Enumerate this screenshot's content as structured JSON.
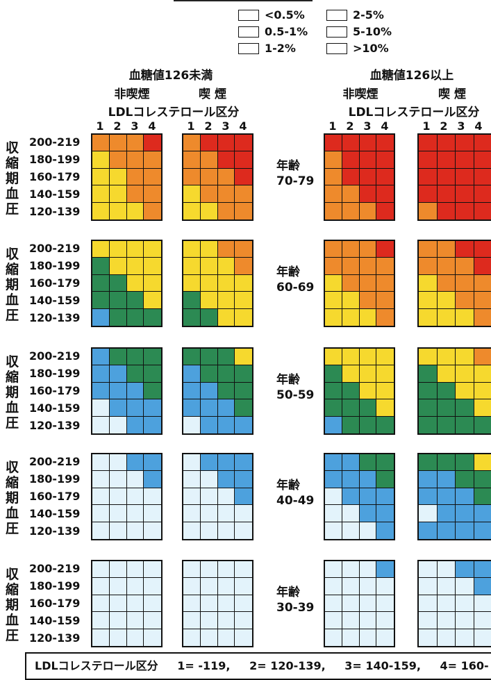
{
  "chart_data": {
    "type": "heatmap",
    "legend": [
      {
        "label": "<0.5%",
        "color": "#e3f3fb"
      },
      {
        "label": "0.5-1%",
        "color": "#4da1dd"
      },
      {
        "label": "1-2%",
        "color": "#2c8a53"
      },
      {
        "label": "2-5%",
        "color": "#f6d92e"
      },
      {
        "label": "5-10%",
        "color": "#ee8a2c"
      },
      {
        "label": ">10%",
        "color": "#dd2a1e"
      }
    ],
    "group_headers": [
      {
        "title": "血糖値126未満",
        "non_smoker": "非喫煙",
        "smoker": "喫 煙",
        "ldl_label": "LDLコレステロール区分"
      },
      {
        "title": "血糖値126以上",
        "non_smoker": "非喫煙",
        "smoker": "喫 煙",
        "ldl_label": "LDLコレステロール区分"
      }
    ],
    "ldl_columns": [
      "1",
      "2",
      "3",
      "4"
    ],
    "sbp_rows": [
      "200-219",
      "180-199",
      "160-179",
      "140-159",
      "120-139"
    ],
    "bp_axis_label": "収縮期血圧",
    "age_prefix": "年齢",
    "panels": [
      {
        "age": "70-79",
        "matrices": [
          [
            [
              4,
              4,
              4,
              5
            ],
            [
              3,
              4,
              4,
              4
            ],
            [
              3,
              3,
              4,
              4
            ],
            [
              3,
              3,
              4,
              4
            ],
            [
              3,
              3,
              3,
              4
            ]
          ],
          [
            [
              4,
              5,
              5,
              5
            ],
            [
              4,
              4,
              5,
              5
            ],
            [
              4,
              4,
              4,
              5
            ],
            [
              3,
              4,
              4,
              4
            ],
            [
              3,
              3,
              4,
              4
            ]
          ],
          [
            [
              5,
              5,
              5,
              5
            ],
            [
              4,
              5,
              5,
              5
            ],
            [
              4,
              5,
              5,
              5
            ],
            [
              4,
              4,
              5,
              5
            ],
            [
              4,
              4,
              4,
              5
            ]
          ],
          [
            [
              5,
              5,
              5,
              5
            ],
            [
              5,
              5,
              5,
              5
            ],
            [
              5,
              5,
              5,
              5
            ],
            [
              5,
              5,
              5,
              5
            ],
            [
              4,
              5,
              5,
              5
            ]
          ]
        ]
      },
      {
        "age": "60-69",
        "matrices": [
          [
            [
              3,
              3,
              3,
              3
            ],
            [
              2,
              3,
              3,
              3
            ],
            [
              2,
              2,
              3,
              3
            ],
            [
              2,
              2,
              2,
              3
            ],
            [
              1,
              2,
              2,
              2
            ]
          ],
          [
            [
              3,
              3,
              4,
              4
            ],
            [
              3,
              3,
              3,
              4
            ],
            [
              3,
              3,
              3,
              3
            ],
            [
              2,
              3,
              3,
              3
            ],
            [
              2,
              2,
              3,
              3
            ]
          ],
          [
            [
              4,
              4,
              4,
              5
            ],
            [
              4,
              4,
              4,
              4
            ],
            [
              3,
              4,
              4,
              4
            ],
            [
              3,
              3,
              4,
              4
            ],
            [
              3,
              3,
              3,
              4
            ]
          ],
          [
            [
              4,
              4,
              5,
              5
            ],
            [
              4,
              4,
              4,
              5
            ],
            [
              3,
              4,
              4,
              4
            ],
            [
              3,
              3,
              4,
              4
            ],
            [
              3,
              3,
              3,
              4
            ]
          ]
        ]
      },
      {
        "age": "50-59",
        "matrices": [
          [
            [
              1,
              2,
              2,
              2
            ],
            [
              1,
              1,
              2,
              2
            ],
            [
              1,
              1,
              1,
              2
            ],
            [
              0,
              1,
              1,
              1
            ],
            [
              0,
              0,
              1,
              1
            ]
          ],
          [
            [
              2,
              2,
              2,
              3
            ],
            [
              1,
              2,
              2,
              2
            ],
            [
              1,
              1,
              2,
              2
            ],
            [
              1,
              1,
              1,
              2
            ],
            [
              0,
              1,
              1,
              1
            ]
          ],
          [
            [
              3,
              3,
              3,
              3
            ],
            [
              2,
              3,
              3,
              3
            ],
            [
              2,
              2,
              3,
              3
            ],
            [
              2,
              2,
              2,
              3
            ],
            [
              1,
              2,
              2,
              2
            ]
          ],
          [
            [
              3,
              3,
              3,
              4
            ],
            [
              2,
              3,
              3,
              3
            ],
            [
              2,
              2,
              3,
              3
            ],
            [
              2,
              2,
              2,
              3
            ],
            [
              2,
              2,
              2,
              2
            ]
          ]
        ]
      },
      {
        "age": "40-49",
        "matrices": [
          [
            [
              0,
              0,
              1,
              1
            ],
            [
              0,
              0,
              0,
              1
            ],
            [
              0,
              0,
              0,
              0
            ],
            [
              0,
              0,
              0,
              0
            ],
            [
              0,
              0,
              0,
              0
            ]
          ],
          [
            [
              0,
              1,
              1,
              1
            ],
            [
              0,
              0,
              1,
              1
            ],
            [
              0,
              0,
              0,
              1
            ],
            [
              0,
              0,
              0,
              0
            ],
            [
              0,
              0,
              0,
              0
            ]
          ],
          [
            [
              1,
              1,
              2,
              2
            ],
            [
              1,
              1,
              1,
              2
            ],
            [
              0,
              1,
              1,
              1
            ],
            [
              0,
              0,
              1,
              1
            ],
            [
              0,
              0,
              0,
              1
            ]
          ],
          [
            [
              2,
              2,
              2,
              3
            ],
            [
              1,
              1,
              2,
              2
            ],
            [
              1,
              1,
              1,
              2
            ],
            [
              0,
              1,
              1,
              1
            ],
            [
              1,
              1,
              1,
              1
            ]
          ]
        ]
      },
      {
        "age": "30-39",
        "matrices": [
          [
            [
              0,
              0,
              0,
              0
            ],
            [
              0,
              0,
              0,
              0
            ],
            [
              0,
              0,
              0,
              0
            ],
            [
              0,
              0,
              0,
              0
            ],
            [
              0,
              0,
              0,
              0
            ]
          ],
          [
            [
              0,
              0,
              0,
              0
            ],
            [
              0,
              0,
              0,
              0
            ],
            [
              0,
              0,
              0,
              0
            ],
            [
              0,
              0,
              0,
              0
            ],
            [
              0,
              0,
              0,
              0
            ]
          ],
          [
            [
              0,
              0,
              0,
              1
            ],
            [
              0,
              0,
              0,
              0
            ],
            [
              0,
              0,
              0,
              0
            ],
            [
              0,
              0,
              0,
              0
            ],
            [
              0,
              0,
              0,
              0
            ]
          ],
          [
            [
              0,
              0,
              1,
              1
            ],
            [
              0,
              0,
              0,
              1
            ],
            [
              0,
              0,
              0,
              0
            ],
            [
              0,
              0,
              0,
              0
            ],
            [
              0,
              0,
              0,
              0
            ]
          ]
        ]
      }
    ],
    "footer": {
      "label": "LDLコレステロール区分",
      "items": [
        "1= -119,",
        "2= 120-139,",
        "3= 140-159,",
        "4= 160-"
      ]
    }
  }
}
